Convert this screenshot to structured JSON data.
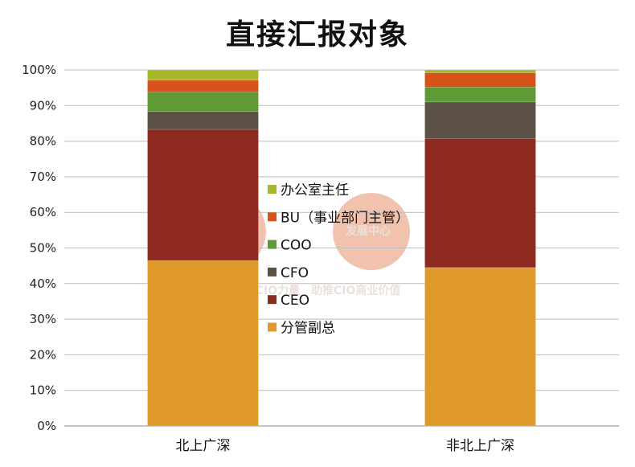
{
  "chart_data": {
    "type": "bar",
    "stacked": true,
    "percent": true,
    "title": "直接汇报对象",
    "categories": [
      "北上广深",
      "非北上广深"
    ],
    "ylim": [
      0,
      100
    ],
    "yticks": [
      "0%",
      "10%",
      "20%",
      "30%",
      "40%",
      "50%",
      "60%",
      "70%",
      "80%",
      "90%",
      "100%"
    ],
    "grid": true,
    "legend_position": "center",
    "series": [
      {
        "name": "分管副总",
        "color": "#e09a2a",
        "values": [
          46.5,
          44.5
        ]
      },
      {
        "name": "CEO",
        "color": "#8e2a1f",
        "values": [
          36.8,
          36.2
        ]
      },
      {
        "name": "CFO",
        "color": "#5b5146",
        "values": [
          5.0,
          10.3
        ]
      },
      {
        "name": "COO",
        "color": "#5e9b35",
        "values": [
          5.5,
          4.2
        ]
      },
      {
        "name": "BU（事业部门主管）",
        "color": "#d8531a",
        "values": [
          3.3,
          4.0
        ]
      },
      {
        "name": "办公室主任",
        "color": "#a9b72b",
        "values": [
          2.9,
          0.8
        ]
      }
    ]
  },
  "watermark": {
    "logo_text": "发展中心",
    "slogan": "聚合中国CIO力量　助推CIO商业价值"
  }
}
